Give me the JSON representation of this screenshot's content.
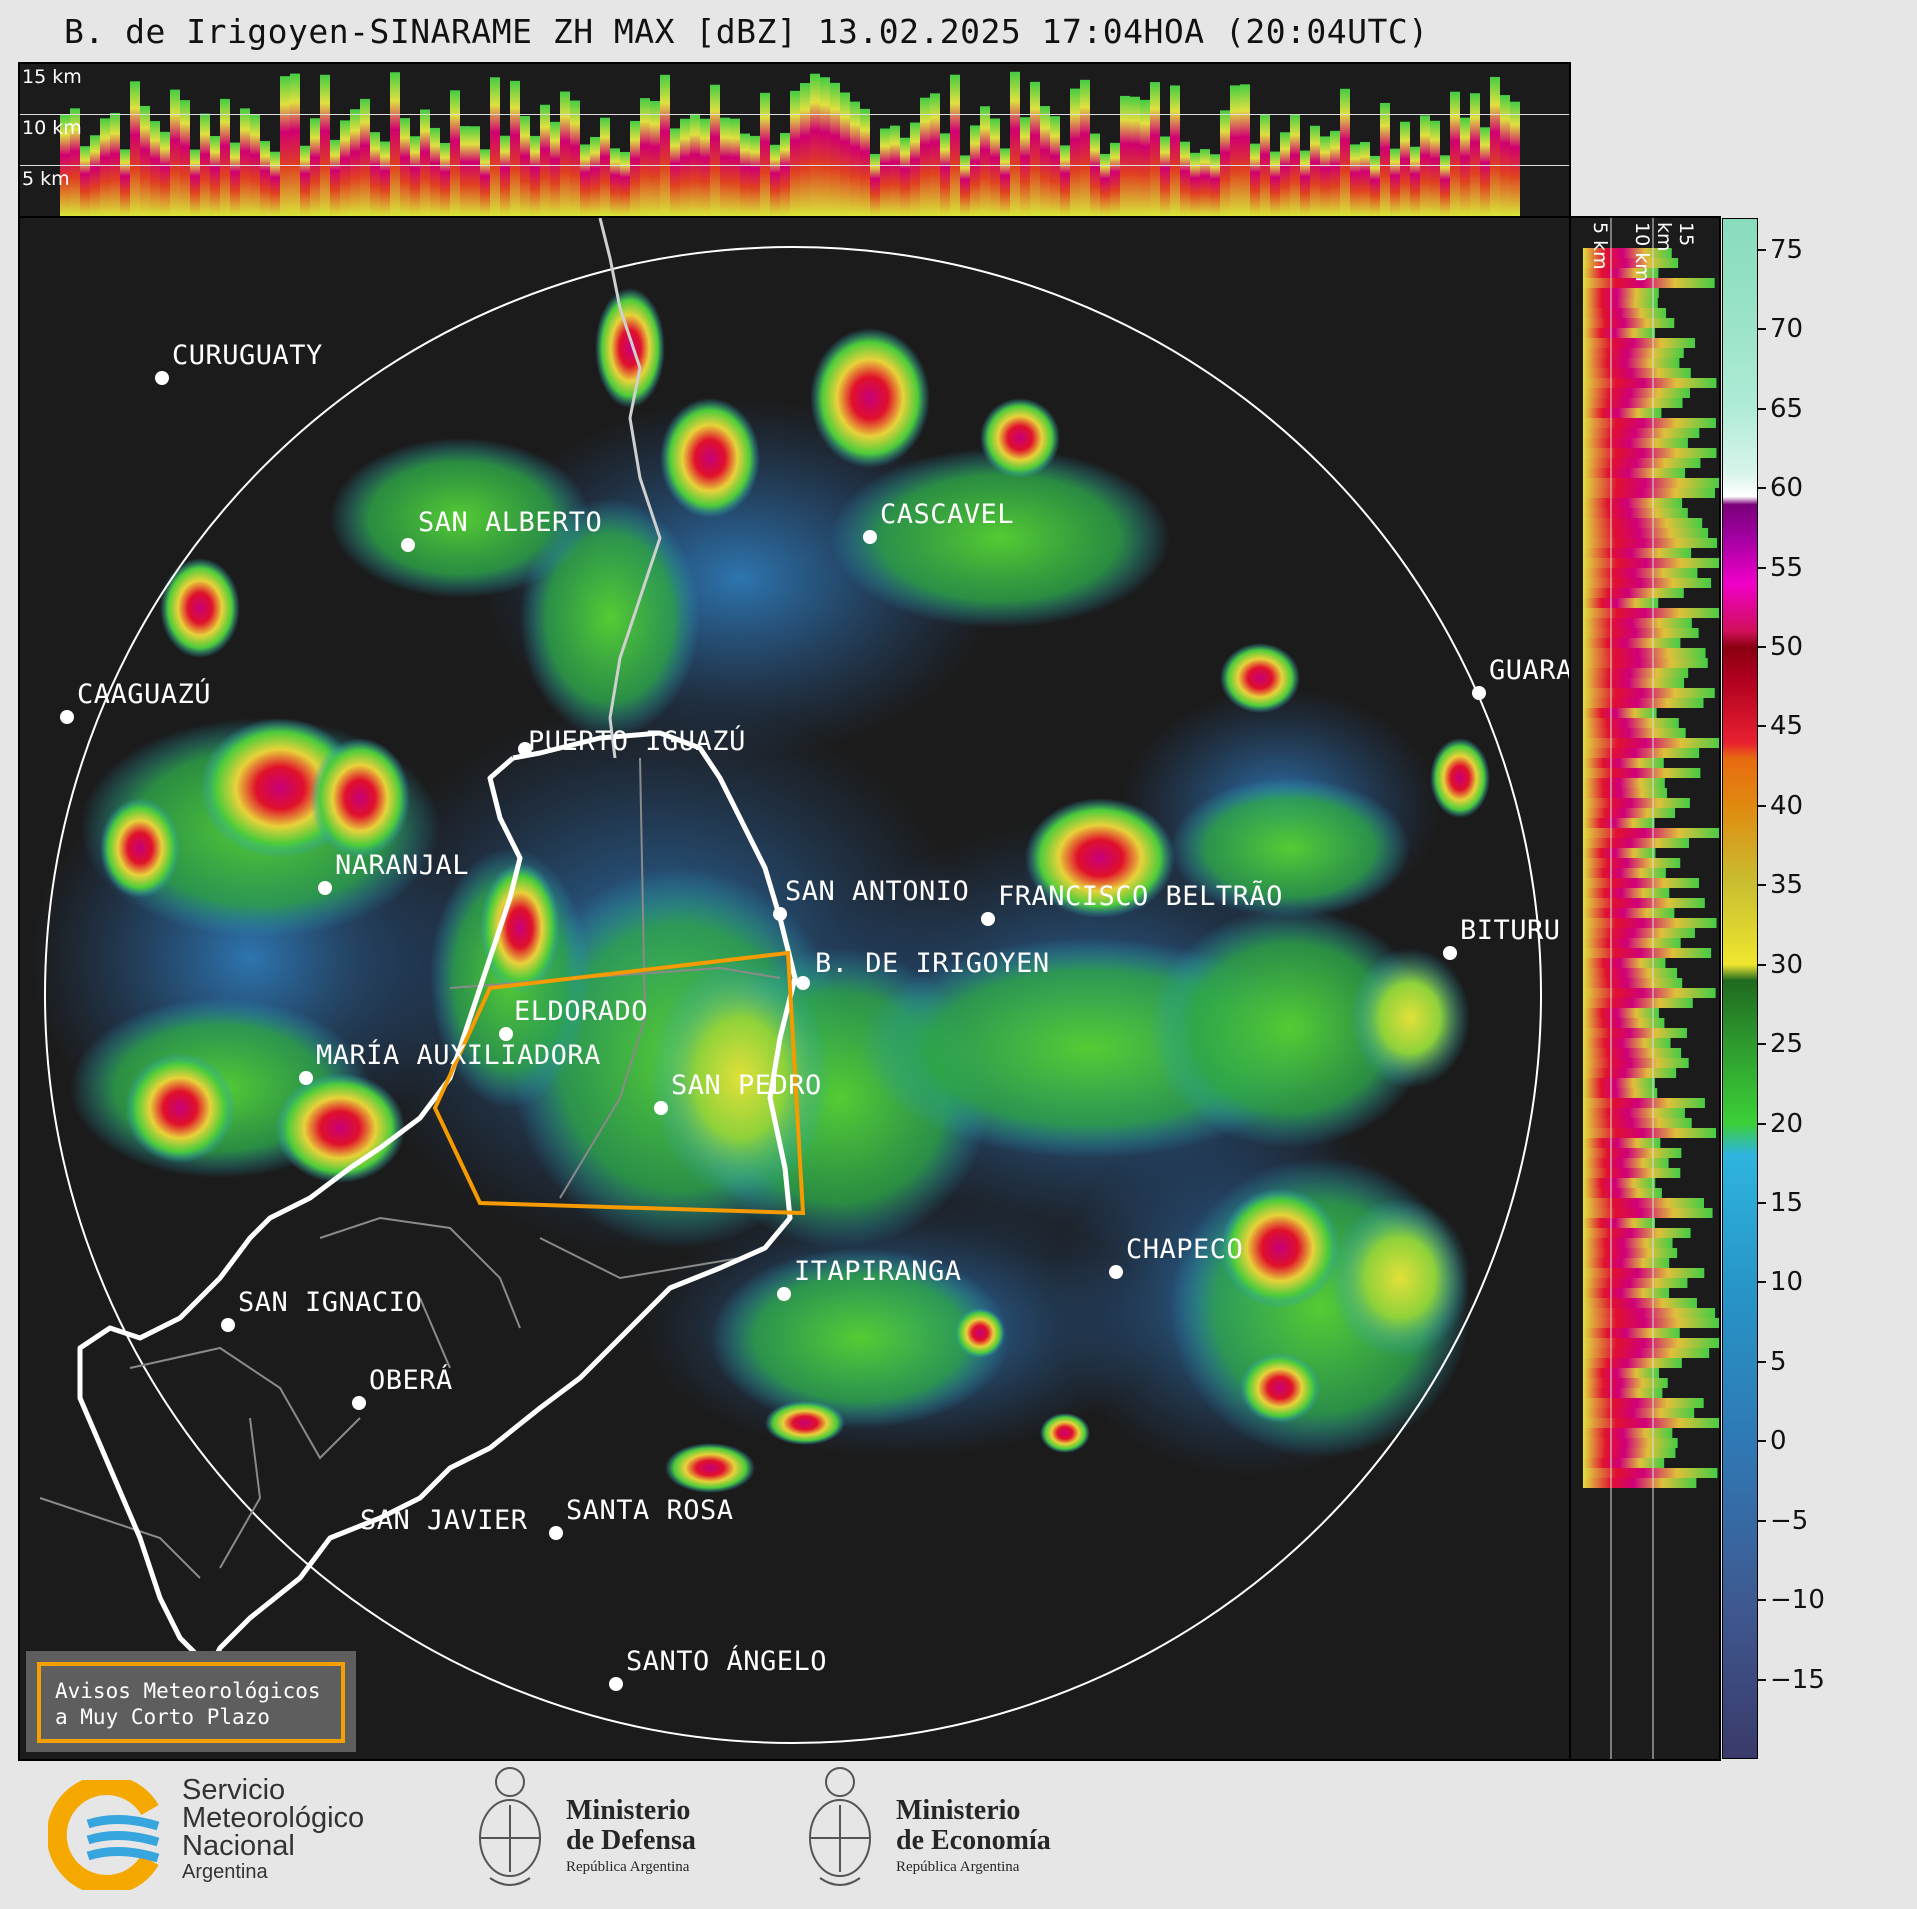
{
  "title": "B. de Irigoyen-SINARAME ZH MAX [dBZ] 13.02.2025 17:04HOA (20:04UTC)",
  "top_panel": {
    "km_labels": [
      "15 km",
      "10 km",
      "5 km"
    ]
  },
  "side_panel": {
    "km_labels": [
      "5 km",
      "10 km",
      "15 km"
    ]
  },
  "colorbar": {
    "ticks": [
      "75",
      "70",
      "65",
      "60",
      "55",
      "50",
      "45",
      "40",
      "35",
      "30",
      "25",
      "20",
      "15",
      "10",
      "5",
      "0",
      "−5",
      "−10",
      "−15"
    ],
    "range": [
      -20,
      77
    ]
  },
  "cities": [
    {
      "name": "CURUGUATY"
    },
    {
      "name": "SAN ALBERTO"
    },
    {
      "name": "CASCAVEL"
    },
    {
      "name": "CAAGUAZÚ"
    },
    {
      "name": "GUARA"
    },
    {
      "name": "PUERTO IGUAZÚ"
    },
    {
      "name": "NARANJAL"
    },
    {
      "name": "SAN ANTONIO"
    },
    {
      "name": "FRANCISCO BELTRÃO"
    },
    {
      "name": "BITURU"
    },
    {
      "name": "B. DE IRIGOYEN"
    },
    {
      "name": "ELDORADO"
    },
    {
      "name": "MARÍA AUXILIADORA"
    },
    {
      "name": "SAN PEDRO"
    },
    {
      "name": "CHAPECO"
    },
    {
      "name": "ITAPIRANGA"
    },
    {
      "name": "SAN IGNACIO"
    },
    {
      "name": "OBERÁ"
    },
    {
      "name": "SAN JAVIER"
    },
    {
      "name": "SANTA ROSA"
    },
    {
      "name": "SANTO ÁNGELO"
    }
  ],
  "warning_box": {
    "line1": "Avisos Meteorológicos",
    "line2": "a Muy Corto Plazo"
  },
  "logos": {
    "smn": {
      "line1": "Servicio",
      "line2": "Meteorológico",
      "line3": "Nacional",
      "line4": "Argentina"
    },
    "defensa": {
      "line1": "Ministerio",
      "line2": "de Defensa",
      "line3": "República Argentina"
    },
    "economia": {
      "line1": "Ministerio",
      "line2": "de Economía",
      "line3": "República Argentina"
    }
  },
  "colors": {
    "panel_bg": "#1b1b1b",
    "warning_border": "#f5a000",
    "warning_polygon": "#f59a00",
    "smn_orange": "#f5a800",
    "smn_blue": "#37a6de"
  }
}
